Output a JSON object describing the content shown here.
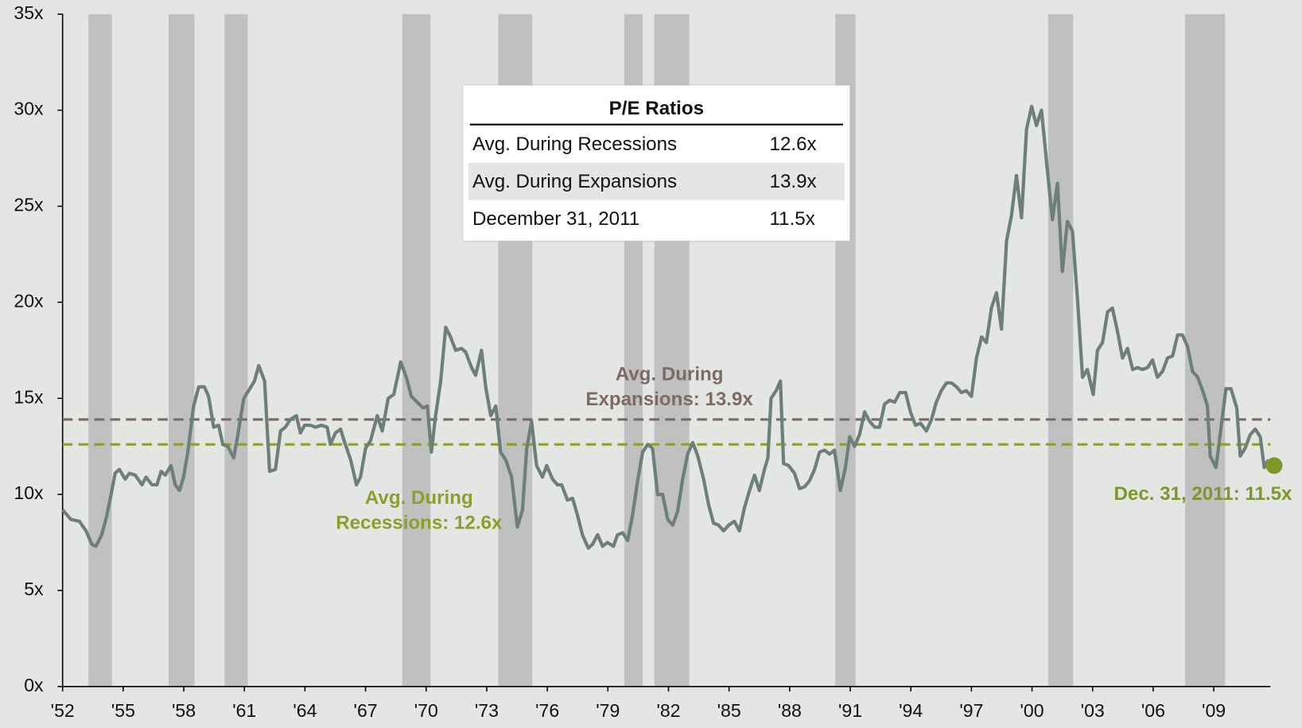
{
  "chart_data": {
    "type": "line",
    "xlim": [
      1952,
      2011.8
    ],
    "ylim": [
      0,
      35
    ],
    "yticks": [
      {
        "value": 0,
        "label": "0x"
      },
      {
        "value": 5,
        "label": "5x"
      },
      {
        "value": 10,
        "label": "10x"
      },
      {
        "value": 15,
        "label": "15x"
      },
      {
        "value": 20,
        "label": "20x"
      },
      {
        "value": 25,
        "label": "25x"
      },
      {
        "value": 30,
        "label": "30x"
      },
      {
        "value": 35,
        "label": "35x"
      }
    ],
    "xticks": [
      {
        "value": 1952,
        "label": "'52"
      },
      {
        "value": 1955,
        "label": "'55"
      },
      {
        "value": 1958,
        "label": "'58"
      },
      {
        "value": 1961,
        "label": "'61"
      },
      {
        "value": 1964,
        "label": "'64"
      },
      {
        "value": 1967,
        "label": "'67"
      },
      {
        "value": 1970,
        "label": "'70"
      },
      {
        "value": 1973,
        "label": "'73"
      },
      {
        "value": 1976,
        "label": "'76"
      },
      {
        "value": 1979,
        "label": "'79"
      },
      {
        "value": 1982,
        "label": "'82"
      },
      {
        "value": 1985,
        "label": "'85"
      },
      {
        "value": 1988,
        "label": "'88"
      },
      {
        "value": 1991,
        "label": "'91"
      },
      {
        "value": 1994,
        "label": "'94"
      },
      {
        "value": 1997,
        "label": "'97"
      },
      {
        "value": 2000,
        "label": "'00"
      },
      {
        "value": 2003,
        "label": "'03"
      },
      {
        "value": 2006,
        "label": "'06"
      },
      {
        "value": 2009,
        "label": "'09"
      }
    ],
    "recession_color": "#c0c0c0",
    "recessions": [
      [
        1953.28,
        1954.44
      ],
      [
        1957.25,
        1958.53
      ],
      [
        1960.02,
        1961.17
      ],
      [
        1968.82,
        1970.22
      ],
      [
        1973.57,
        1975.26
      ],
      [
        1979.81,
        1980.72
      ],
      [
        1981.3,
        1983.03
      ],
      [
        1990.26,
        1991.26
      ],
      [
        2000.8,
        2002.04
      ],
      [
        2007.58,
        2009.56
      ]
    ],
    "x": [
      1952.0,
      1952.41,
      1952.83,
      1953.16,
      1953.45,
      1953.65,
      1953.94,
      1954.19,
      1954.4,
      1954.6,
      1954.81,
      1955.1,
      1955.31,
      1955.6,
      1955.93,
      1956.13,
      1956.42,
      1956.67,
      1956.88,
      1957.08,
      1957.37,
      1957.58,
      1957.79,
      1957.99,
      1958.2,
      1958.49,
      1958.74,
      1959.02,
      1959.23,
      1959.48,
      1959.73,
      1959.93,
      1960.18,
      1960.47,
      1960.68,
      1960.97,
      1961.21,
      1961.5,
      1961.71,
      1962.0,
      1962.25,
      1962.54,
      1962.79,
      1963.03,
      1963.28,
      1963.57,
      1963.78,
      1963.98,
      1964.27,
      1964.52,
      1964.81,
      1965.1,
      1965.26,
      1965.51,
      1965.76,
      1965.97,
      1966.26,
      1966.55,
      1966.75,
      1967.0,
      1967.25,
      1967.58,
      1967.83,
      1968.12,
      1968.4,
      1968.74,
      1969.02,
      1969.27,
      1969.56,
      1969.85,
      1970.06,
      1970.26,
      1970.47,
      1970.72,
      1970.97,
      1971.21,
      1971.46,
      1971.75,
      1971.96,
      1972.25,
      1972.45,
      1972.74,
      1972.95,
      1973.2,
      1973.45,
      1973.69,
      1973.94,
      1974.23,
      1974.52,
      1974.77,
      1974.98,
      1975.22,
      1975.47,
      1975.76,
      1975.97,
      1976.26,
      1976.5,
      1976.71,
      1977.0,
      1977.25,
      1977.5,
      1977.74,
      1978.03,
      1978.24,
      1978.49,
      1978.74,
      1978.98,
      1979.27,
      1979.48,
      1979.73,
      1979.98,
      1980.22,
      1980.47,
      1980.72,
      1980.97,
      1981.21,
      1981.46,
      1981.71,
      1981.96,
      1982.21,
      1982.45,
      1982.7,
      1982.95,
      1983.2,
      1983.45,
      1983.74,
      1983.98,
      1984.23,
      1984.48,
      1984.73,
      1984.98,
      1985.26,
      1985.51,
      1985.76,
      1986.01,
      1986.26,
      1986.5,
      1986.75,
      1986.92,
      1987.08,
      1987.33,
      1987.54,
      1987.7,
      1987.95,
      1988.24,
      1988.49,
      1988.74,
      1988.98,
      1989.23,
      1989.48,
      1989.73,
      1989.97,
      1990.22,
      1990.51,
      1990.76,
      1990.97,
      1991.21,
      1991.46,
      1991.71,
      1991.96,
      1992.21,
      1992.45,
      1992.7,
      1992.95,
      1993.2,
      1993.45,
      1993.74,
      1993.98,
      1994.23,
      1994.48,
      1994.77,
      1995.02,
      1995.26,
      1995.51,
      1995.76,
      1996.01,
      1996.26,
      1996.5,
      1996.75,
      1997.0,
      1997.25,
      1997.5,
      1997.74,
      1997.99,
      1998.24,
      1998.49,
      1998.74,
      1998.98,
      1999.23,
      1999.48,
      1999.73,
      1999.98,
      2000.22,
      2000.47,
      2000.72,
      2001.01,
      2001.26,
      2001.5,
      2001.75,
      2002.0,
      2002.25,
      2002.5,
      2002.74,
      2003.03,
      2003.24,
      2003.49,
      2003.74,
      2003.98,
      2004.23,
      2004.48,
      2004.73,
      2004.98,
      2005.22,
      2005.47,
      2005.72,
      2005.97,
      2006.21,
      2006.46,
      2006.71,
      2006.96,
      2007.21,
      2007.45,
      2007.7,
      2007.95,
      2008.2,
      2008.45,
      2008.69,
      2008.82,
      2009.11,
      2009.36,
      2009.6,
      2009.85,
      2010.14,
      2010.31,
      2010.55,
      2010.8,
      2011.05,
      2011.3,
      2011.5,
      2011.71
    ],
    "series": [
      {
        "color": "#6e7e78",
        "values": [
          9.2,
          8.7,
          8.6,
          8.1,
          7.4,
          7.3,
          7.9,
          8.9,
          10.0,
          11.1,
          11.3,
          10.8,
          11.1,
          11.0,
          10.5,
          10.9,
          10.5,
          10.5,
          11.2,
          11.0,
          11.5,
          10.5,
          10.2,
          10.9,
          12.2,
          14.6,
          15.6,
          15.6,
          15.1,
          13.5,
          13.6,
          12.6,
          12.5,
          11.9,
          13.1,
          15.0,
          15.4,
          15.9,
          16.7,
          15.9,
          11.2,
          11.3,
          13.3,
          13.5,
          13.9,
          14.1,
          13.2,
          13.6,
          13.6,
          13.5,
          13.6,
          13.5,
          12.6,
          13.2,
          13.4,
          12.7,
          11.8,
          10.5,
          10.9,
          12.4,
          12.8,
          14.1,
          13.3,
          15.0,
          15.2,
          16.9,
          16.1,
          15.1,
          14.8,
          14.5,
          14.6,
          12.2,
          14.1,
          15.9,
          18.7,
          18.2,
          17.5,
          17.6,
          17.4,
          16.6,
          16.2,
          17.5,
          15.6,
          14.1,
          14.6,
          12.2,
          11.8,
          10.9,
          8.3,
          9.2,
          12.4,
          13.8,
          11.5,
          10.9,
          11.5,
          10.8,
          10.5,
          10.5,
          9.7,
          9.8,
          8.9,
          7.9,
          7.2,
          7.4,
          7.9,
          7.3,
          7.5,
          7.3,
          7.9,
          8.0,
          7.6,
          8.9,
          10.7,
          12.2,
          12.6,
          12.4,
          10.0,
          10.0,
          8.7,
          8.4,
          9.1,
          10.8,
          12.1,
          12.7,
          12.0,
          10.8,
          9.5,
          8.5,
          8.4,
          8.1,
          8.4,
          8.6,
          8.1,
          9.3,
          10.2,
          11.0,
          10.2,
          11.3,
          11.9,
          15.0,
          15.4,
          15.9,
          11.6,
          11.5,
          11.1,
          10.3,
          10.4,
          10.7,
          11.3,
          12.2,
          12.3,
          12.1,
          12.3,
          10.2,
          11.4,
          13.0,
          12.5,
          13.1,
          14.3,
          13.8,
          13.5,
          13.5,
          14.7,
          14.9,
          14.8,
          15.3,
          15.3,
          14.3,
          13.6,
          13.7,
          13.3,
          13.9,
          14.8,
          15.4,
          15.8,
          15.8,
          15.6,
          15.3,
          15.4,
          15.1,
          17.1,
          18.2,
          17.9,
          19.7,
          20.5,
          18.6,
          23.2,
          24.5,
          26.6,
          24.4,
          29.0,
          30.2,
          29.2,
          30.0,
          27.3,
          24.3,
          26.2,
          21.6,
          24.2,
          23.7,
          20.2,
          16.1,
          16.5,
          15.2,
          17.5,
          17.9,
          19.5,
          19.7,
          18.5,
          17.1,
          17.6,
          16.5,
          16.6,
          16.5,
          16.6,
          17.0,
          16.1,
          16.4,
          17.1,
          17.2,
          18.3,
          18.3,
          17.7,
          16.4,
          16.1,
          15.4,
          14.6,
          12.0,
          11.4,
          13.5,
          15.5,
          15.5,
          14.5,
          12.0,
          12.4,
          13.1,
          13.4,
          13.0,
          11.4,
          11.8
        ]
      }
    ],
    "reference_lines": [
      {
        "value": 13.9,
        "color": "#7d6a62",
        "label_lines": [
          "Avg. During",
          "Expansions: 13.9x"
        ]
      },
      {
        "value": 12.6,
        "color": "#8e9e2a",
        "label_lines": [
          "Avg. During",
          "Recessions: 12.6x"
        ]
      }
    ],
    "marker": {
      "x": 2011.99,
      "value": 11.5,
      "color": "#7f962a",
      "label": "Dec. 31, 2011: 11.5x"
    },
    "table": {
      "title": "P/E Ratios",
      "rows": [
        [
          "Avg. During Recessions",
          "12.6x"
        ],
        [
          "Avg. During Expansions",
          "13.9x"
        ],
        [
          "December 31, 2011",
          "11.5x"
        ]
      ]
    }
  }
}
